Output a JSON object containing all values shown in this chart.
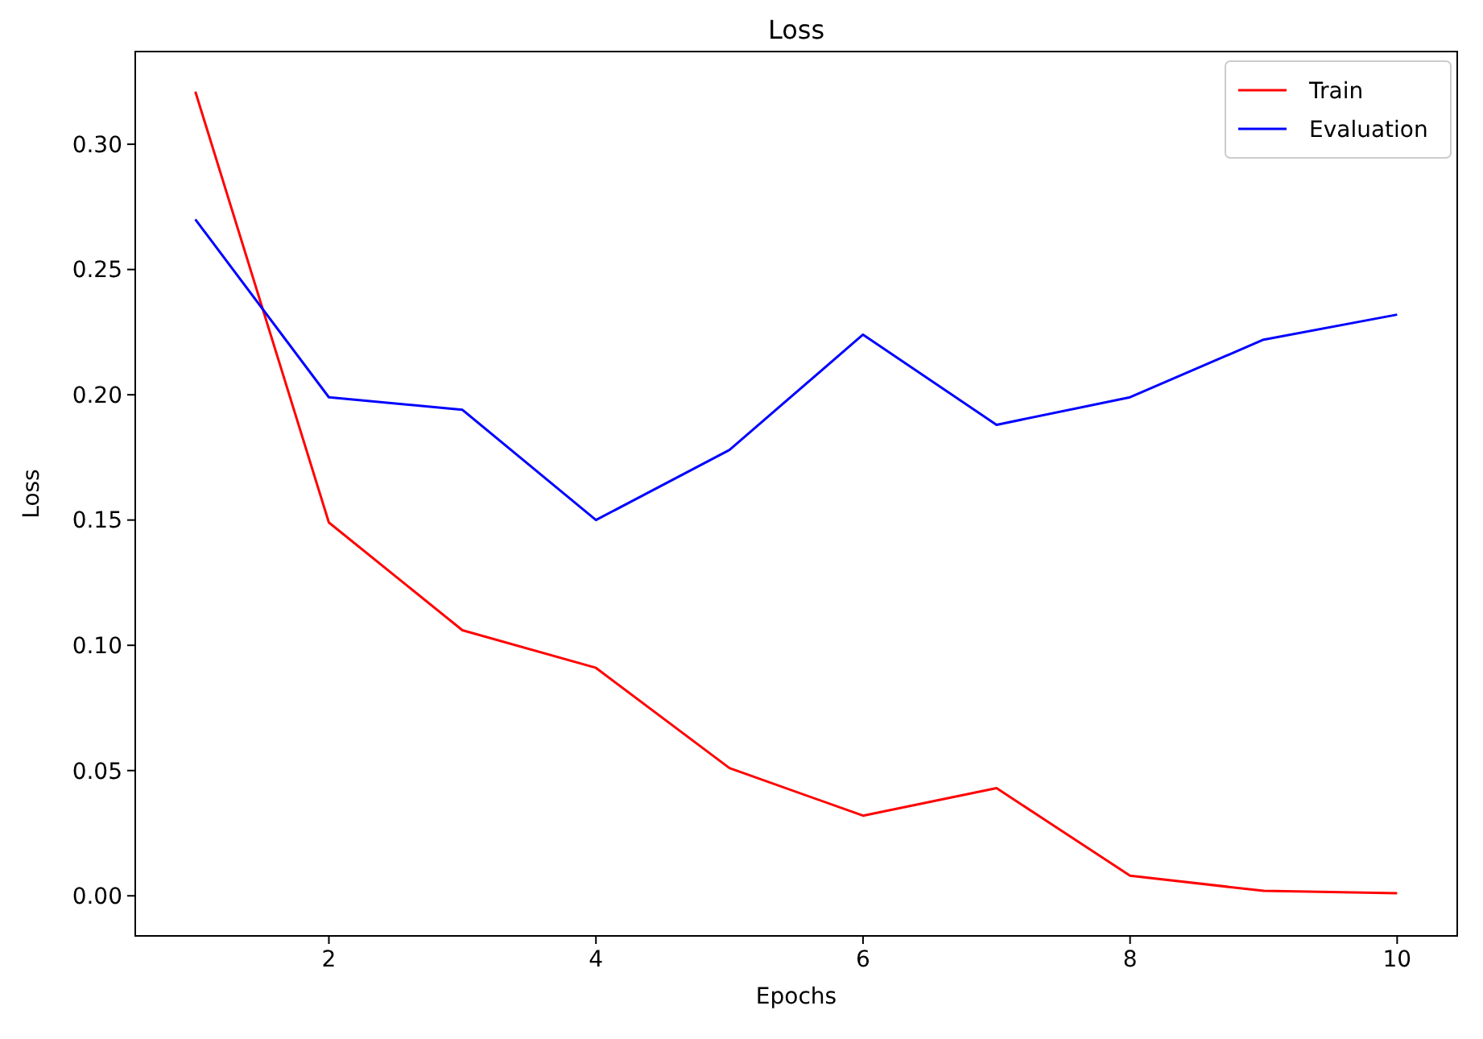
{
  "chart_data": {
    "type": "line",
    "title": "Loss",
    "xlabel": "Epochs",
    "ylabel": "Loss",
    "x": [
      1,
      2,
      3,
      4,
      5,
      6,
      7,
      8,
      9,
      10
    ],
    "series": [
      {
        "name": "Train",
        "color": "#ff0000",
        "values": [
          0.321,
          0.149,
          0.106,
          0.091,
          0.051,
          0.032,
          0.043,
          0.008,
          0.002,
          0.001
        ]
      },
      {
        "name": "Evaluation",
        "color": "#0000ff",
        "values": [
          0.27,
          0.199,
          0.194,
          0.15,
          0.178,
          0.224,
          0.188,
          0.199,
          0.222,
          0.232
        ]
      }
    ],
    "xlim": [
      0.55,
      10.45
    ],
    "xticks": [
      2,
      4,
      6,
      8,
      10
    ],
    "ylim": [
      -0.016,
      0.337
    ],
    "yticks": [
      {
        "value": 0,
        "label": "0.00"
      },
      {
        "value": 0.05,
        "label": "0.05"
      },
      {
        "value": 0.1,
        "label": "0.10"
      },
      {
        "value": 0.15,
        "label": "0.15"
      },
      {
        "value": 0.2,
        "label": "0.20"
      },
      {
        "value": 0.25,
        "label": "0.25"
      },
      {
        "value": 0.3,
        "label": "0.30"
      }
    ],
    "grid": false,
    "legend": "top right",
    "marker": "none",
    "line_style": "solid"
  }
}
